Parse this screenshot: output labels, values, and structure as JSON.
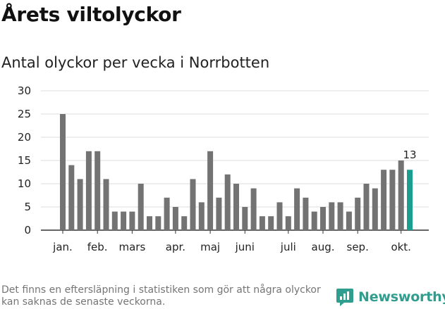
{
  "header": {
    "title": "Årets viltolyckor",
    "subtitle": "Antal olyckor per vecka i Norrbotten"
  },
  "chart_data": {
    "type": "bar",
    "title": "Årets viltolyckor",
    "subtitle": "Antal olyckor per vecka i Norrbotten",
    "ylim": [
      0,
      30
    ],
    "yticks": [
      0,
      5,
      10,
      15,
      20,
      25,
      30
    ],
    "grid": true,
    "values": [
      25,
      14,
      11,
      17,
      17,
      11,
      4,
      4,
      4,
      10,
      3,
      3,
      7,
      5,
      3,
      11,
      6,
      17,
      7,
      12,
      10,
      5,
      9,
      3,
      3,
      6,
      3,
      9,
      7,
      4,
      5,
      6,
      6,
      4,
      7,
      10,
      9,
      13,
      13,
      15,
      13
    ],
    "month_labels": [
      {
        "label": "jan.",
        "bar_index": 0
      },
      {
        "label": "feb.",
        "bar_index": 4
      },
      {
        "label": "mars",
        "bar_index": 8
      },
      {
        "label": "apr.",
        "bar_index": 13
      },
      {
        "label": "maj",
        "bar_index": 17
      },
      {
        "label": "juni",
        "bar_index": 21
      },
      {
        "label": "juli",
        "bar_index": 26
      },
      {
        "label": "aug.",
        "bar_index": 30
      },
      {
        "label": "sep.",
        "bar_index": 34
      },
      {
        "label": "okt.",
        "bar_index": 39
      }
    ],
    "bar_color": "#737373",
    "highlight_color": "#1a9e8f",
    "highlight_last": true,
    "last_value_label": "13"
  },
  "footer": {
    "note": "Det finns en eftersläpning i statistiken som gör att några olyckor kan saknas de senaste veckorna.",
    "brand": "Newsworthy",
    "brand_icon": "newsworthy-logo-icon",
    "brand_color": "#2f9e8f"
  }
}
